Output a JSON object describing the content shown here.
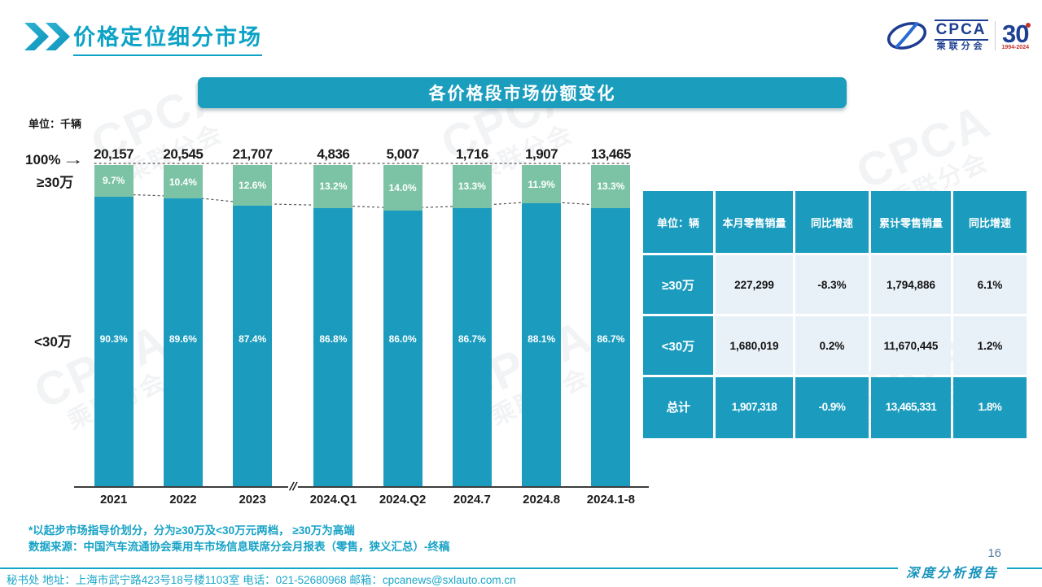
{
  "slide": {
    "title": "价格定位细分市场",
    "banner_title": "各价格段市场份额变化",
    "page_number": "16",
    "report_label": "深度分析报告",
    "watermark_line1": "CPCA",
    "watermark_line2": "乘联分会"
  },
  "logo": {
    "acronym": "CPCA",
    "org_name": "乘联分会",
    "anniversary_number": "30",
    "anniversary_years": "1994-2024"
  },
  "chart": {
    "unit_label": "单位：千辆",
    "y_axis_top_label": "100%",
    "arrow_glyph": "→",
    "upper_segment_label": "≥30万",
    "lower_segment_label": "<30万",
    "axis_break_glyph": "//"
  },
  "chart_data": {
    "type": "bar",
    "stacked": true,
    "title": "各价格段市场份额变化",
    "unit": "千辆",
    "categories": [
      "2021",
      "2022",
      "2023",
      "2024.Q1",
      "2024.Q2",
      "2024.7",
      "2024.8",
      "2024.1-8"
    ],
    "totals_label_values": [
      "20,157",
      "20,545",
      "21,707",
      "4,836",
      "5,007",
      "1,716",
      "1,907",
      "13,465"
    ],
    "series": [
      {
        "name": "≥30万",
        "values": [
          9.7,
          10.4,
          12.6,
          13.2,
          14.0,
          13.3,
          11.9,
          13.3
        ],
        "labels": [
          "9.7%",
          "10.4%",
          "12.6%",
          "13.2%",
          "14.0%",
          "13.3%",
          "11.9%",
          "13.3%"
        ],
        "color": "#7cc3a5"
      },
      {
        "name": "<30万",
        "values": [
          90.3,
          89.6,
          87.4,
          86.8,
          86.0,
          86.7,
          88.1,
          86.7
        ],
        "labels": [
          "90.3%",
          "89.6%",
          "87.4%",
          "86.8%",
          "86.0%",
          "86.7%",
          "88.1%",
          "86.7%"
        ],
        "color": "#1b9cbe"
      }
    ],
    "ylim": [
      0,
      100
    ],
    "y_unit": "%",
    "axis_break_between": [
      "2023",
      "2024.Q1"
    ],
    "legend_position": "left-of-plot",
    "grid": false
  },
  "table": {
    "headers": [
      "单位：辆",
      "本月零售销量",
      "同比增速",
      "累计零售销量",
      "同比增速"
    ],
    "rows": [
      {
        "label": "≥30万",
        "cells": [
          "227,299",
          "-8.3%",
          "1,794,886",
          "6.1%"
        ],
        "is_total": false
      },
      {
        "label": "<30万",
        "cells": [
          "1,680,019",
          "0.2%",
          "11,670,445",
          "1.2%"
        ],
        "is_total": false
      },
      {
        "label": "总计",
        "cells": [
          "1,907,318",
          "-0.9%",
          "13,465,331",
          "1.8%"
        ],
        "is_total": true
      }
    ]
  },
  "footnotes": [
    "*以起步市场指导价划分，分为≥30万及<30万元两档， ≥30万为高端",
    "数据来源：中国汽车流通协会乘用车市场信息联席分会月报表（零售，狭义汇总）-终稿"
  ],
  "footer": {
    "contact": "秘书处  地址：上海市武宁路423号18号楼1103室 电话：021-52680968  邮箱：cpcanews@sxlauto.com.cn"
  },
  "colors": {
    "teal": "#1b9cbe",
    "green": "#7cc3a5",
    "title_teal": "#0da3c7",
    "light_cell": "#e9f1f8",
    "logo_blue": "#1d3d91",
    "accent_red": "#c9312b",
    "axis_dark": "#3d3d3d"
  }
}
